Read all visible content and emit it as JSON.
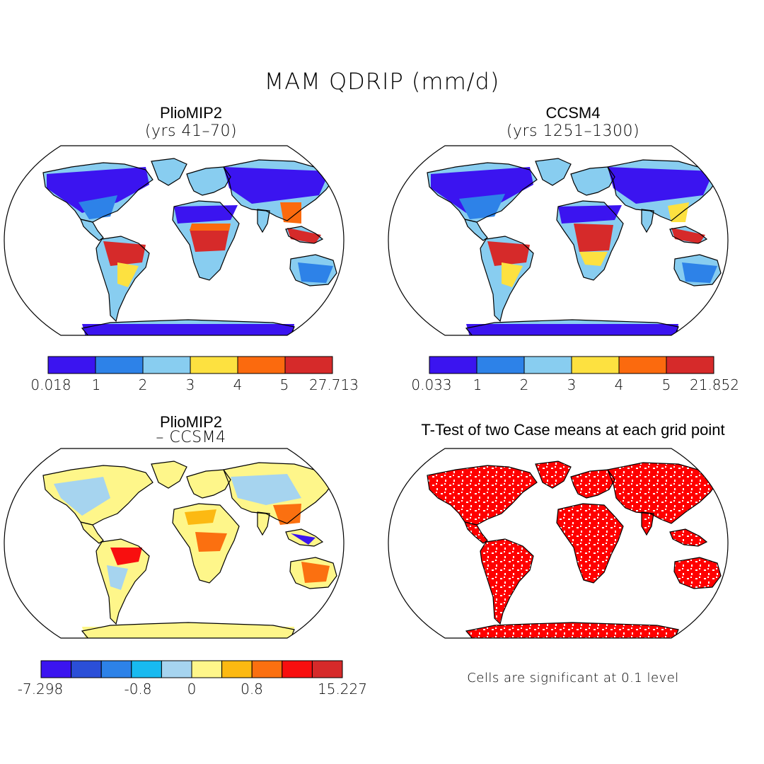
{
  "main_title": "MAM QDRIP (mm/d)",
  "panels": [
    {
      "title": "PlioMIP2",
      "subtitle": "(yrs 41–70)"
    },
    {
      "title": "CCSM4",
      "subtitle": "(yrs 1251–1300)"
    },
    {
      "title": "PlioMIP2",
      "subtitle": "– CCSM4"
    },
    {
      "title": "T-Test of two Case means at each grid point",
      "subtitle": ""
    }
  ],
  "colorbars": [
    {
      "colors": [
        "#3b14f0",
        "#2d82e8",
        "#88cdf0",
        "#fde140",
        "#fb6a0e",
        "#d62a2a"
      ],
      "labels": [
        "0.018",
        "1",
        "2",
        "3",
        "4",
        "5",
        "27.713"
      ]
    },
    {
      "colors": [
        "#3b14f0",
        "#2d82e8",
        "#88cdf0",
        "#fde140",
        "#fb6a0e",
        "#d62a2a"
      ],
      "labels": [
        "0.033",
        "1",
        "2",
        "3",
        "4",
        "5",
        "21.852"
      ]
    },
    {
      "colors": [
        "#3b14f0",
        "#2b4fd8",
        "#2d82e8",
        "#18baf0",
        "#a6d4ef",
        "#fef68a",
        "#fcb912",
        "#fb7010",
        "#f80f0f",
        "#d62a2a"
      ],
      "labels": [
        "-7.298",
        "-0.8",
        "0",
        "0.8",
        "15.227"
      ]
    }
  ],
  "note": "Cells are significant at 0.1 level",
  "colors": {
    "land_outline": "#000000",
    "significance": "#ff0000"
  }
}
